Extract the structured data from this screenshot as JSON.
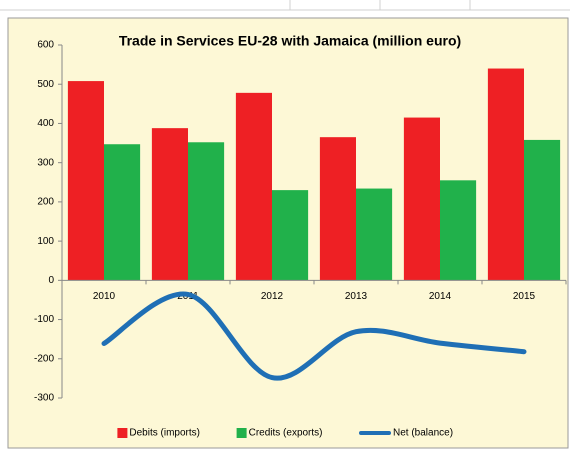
{
  "chart_data": {
    "type": "bar",
    "title": "Trade in Services EU-28 with Jamaica (million euro)",
    "categories": [
      "2010",
      "2011",
      "2012",
      "2013",
      "2014",
      "2015"
    ],
    "series": [
      {
        "name": "Debits (imports)",
        "color": "#ee2024",
        "type": "bar",
        "values": [
          508,
          388,
          478,
          365,
          415,
          540
        ]
      },
      {
        "name": "Credits (exports)",
        "color": "#21b14b",
        "type": "bar",
        "values": [
          347,
          352,
          230,
          234,
          255,
          358
        ]
      },
      {
        "name": "Net (balance)",
        "color": "#1f6fb5",
        "type": "line",
        "values": [
          -161,
          -36,
          -248,
          -131,
          -160,
          -182
        ]
      }
    ],
    "ylim": [
      -300,
      600
    ],
    "yticks": [
      -300,
      -200,
      -100,
      0,
      100,
      200,
      300,
      400,
      500,
      600
    ],
    "legend": "bottom"
  }
}
